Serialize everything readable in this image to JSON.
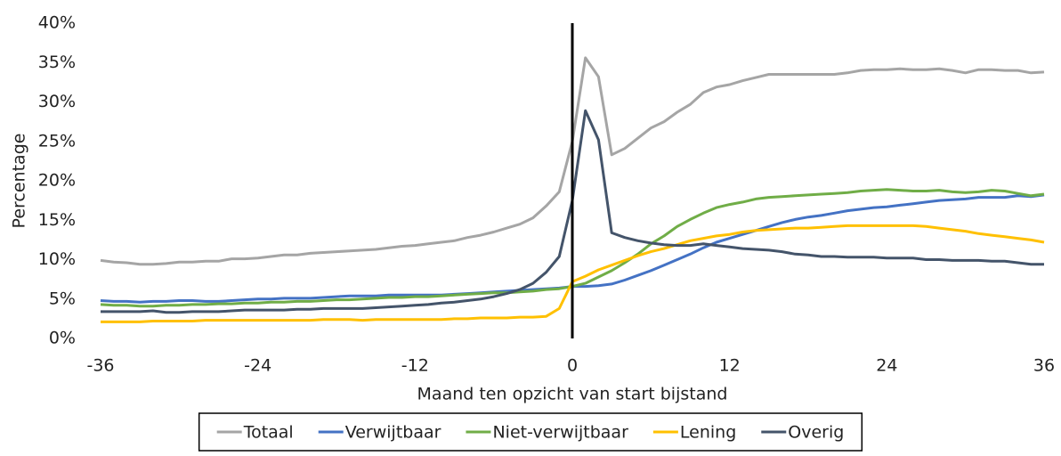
{
  "chart_data": {
    "type": "line",
    "xlabel": "Maand ten opzicht van start bijstand",
    "ylabel": "Percentage",
    "x": [
      -36,
      -35,
      -34,
      -33,
      -32,
      -31,
      -30,
      -29,
      -28,
      -27,
      -26,
      -25,
      -24,
      -23,
      -22,
      -21,
      -20,
      -19,
      -18,
      -17,
      -16,
      -15,
      -14,
      -13,
      -12,
      -11,
      -10,
      -9,
      -8,
      -7,
      -6,
      -5,
      -4,
      -3,
      -2,
      -1,
      0,
      1,
      2,
      3,
      4,
      5,
      6,
      7,
      8,
      9,
      10,
      11,
      12,
      13,
      14,
      15,
      16,
      17,
      18,
      19,
      20,
      21,
      22,
      23,
      24,
      25,
      26,
      27,
      28,
      29,
      30,
      31,
      32,
      33,
      34,
      35,
      36
    ],
    "xlim": [
      -36,
      36
    ],
    "xticks": [
      -36,
      -24,
      -12,
      0,
      12,
      24,
      36
    ],
    "ylim": [
      0,
      40
    ],
    "yticks": [
      {
        "value": 0,
        "label": "0%"
      },
      {
        "value": 5,
        "label": "5%"
      },
      {
        "value": 10,
        "label": "10%"
      },
      {
        "value": 15,
        "label": "15%"
      },
      {
        "value": 20,
        "label": "20%"
      },
      {
        "value": 25,
        "label": "25%"
      },
      {
        "value": 30,
        "label": "30%"
      },
      {
        "value": 35,
        "label": "35%"
      },
      {
        "value": 40,
        "label": "40%"
      }
    ],
    "grid": false,
    "vline": 0,
    "legend": "bottom",
    "series": [
      {
        "name": "Totaal",
        "color": "#a5a5a5",
        "values": [
          9.9,
          9.7,
          9.6,
          9.4,
          9.4,
          9.5,
          9.7,
          9.7,
          9.8,
          9.8,
          10.1,
          10.1,
          10.2,
          10.4,
          10.6,
          10.6,
          10.8,
          10.9,
          11.0,
          11.1,
          11.2,
          11.3,
          11.5,
          11.7,
          11.8,
          12.0,
          12.2,
          12.4,
          12.8,
          13.1,
          13.5,
          14.0,
          14.5,
          15.3,
          16.8,
          18.6,
          25,
          35.6,
          33.2,
          23.3,
          24.1,
          25.4,
          26.7,
          27.5,
          28.7,
          29.7,
          31.2,
          31.9,
          32.2,
          32.7,
          33.1,
          33.5,
          33.5,
          33.5,
          33.5,
          33.5,
          33.5,
          33.7,
          34.0,
          34.1,
          34.1,
          34.2,
          34.1,
          34.1,
          34.2,
          34.0,
          33.7,
          34.1,
          34.1,
          34.0,
          34.0,
          33.7,
          33.8
        ]
      },
      {
        "name": "Verwijtbaar",
        "color": "#4472c4",
        "values": [
          4.8,
          4.7,
          4.7,
          4.6,
          4.7,
          4.7,
          4.8,
          4.8,
          4.7,
          4.7,
          4.8,
          4.9,
          5.0,
          5.0,
          5.1,
          5.1,
          5.1,
          5.2,
          5.3,
          5.4,
          5.4,
          5.4,
          5.5,
          5.5,
          5.5,
          5.5,
          5.5,
          5.6,
          5.7,
          5.8,
          5.9,
          6.0,
          6.1,
          6.2,
          6.3,
          6.4,
          6.6,
          6.6,
          6.7,
          6.9,
          7.4,
          8.0,
          8.6,
          9.3,
          10.0,
          10.7,
          11.5,
          12.2,
          12.7,
          13.2,
          13.7,
          14.2,
          14.7,
          15.1,
          15.4,
          15.6,
          15.9,
          16.2,
          16.4,
          16.6,
          16.7,
          16.9,
          17.1,
          17.3,
          17.5,
          17.6,
          17.7,
          17.9,
          17.9,
          17.9,
          18.1,
          18.0,
          18.2
        ]
      },
      {
        "name": "Niet-verwijtbaar",
        "color": "#70ad47",
        "values": [
          4.3,
          4.2,
          4.2,
          4.1,
          4.1,
          4.2,
          4.2,
          4.3,
          4.3,
          4.4,
          4.4,
          4.5,
          4.5,
          4.6,
          4.6,
          4.7,
          4.7,
          4.8,
          4.9,
          4.9,
          5.0,
          5.1,
          5.2,
          5.2,
          5.3,
          5.3,
          5.4,
          5.5,
          5.6,
          5.7,
          5.8,
          5.8,
          5.9,
          6.0,
          6.2,
          6.3,
          6.6,
          7.0,
          7.8,
          8.6,
          9.6,
          10.7,
          12.0,
          13.0,
          14.2,
          15.1,
          15.9,
          16.6,
          17.0,
          17.3,
          17.7,
          17.9,
          18.0,
          18.1,
          18.2,
          18.3,
          18.4,
          18.5,
          18.7,
          18.8,
          18.9,
          18.8,
          18.7,
          18.7,
          18.8,
          18.6,
          18.5,
          18.6,
          18.8,
          18.7,
          18.4,
          18.1,
          18.3
        ]
      },
      {
        "name": "Lening",
        "color": "#ffc000",
        "values": [
          2.1,
          2.1,
          2.1,
          2.1,
          2.2,
          2.2,
          2.2,
          2.2,
          2.3,
          2.3,
          2.3,
          2.3,
          2.3,
          2.3,
          2.3,
          2.3,
          2.3,
          2.4,
          2.4,
          2.4,
          2.3,
          2.4,
          2.4,
          2.4,
          2.4,
          2.4,
          2.4,
          2.5,
          2.5,
          2.6,
          2.6,
          2.6,
          2.7,
          2.7,
          2.8,
          3.8,
          7.2,
          7.9,
          8.7,
          9.3,
          9.9,
          10.5,
          11.0,
          11.4,
          11.9,
          12.4,
          12.7,
          13.0,
          13.2,
          13.5,
          13.7,
          13.8,
          13.9,
          14.0,
          14.0,
          14.1,
          14.2,
          14.3,
          14.3,
          14.3,
          14.3,
          14.3,
          14.3,
          14.2,
          14.0,
          13.8,
          13.6,
          13.3,
          13.1,
          12.9,
          12.7,
          12.5,
          12.2
        ]
      },
      {
        "name": "Overig",
        "color": "#44546a",
        "values": [
          3.4,
          3.4,
          3.4,
          3.4,
          3.5,
          3.3,
          3.3,
          3.4,
          3.4,
          3.4,
          3.5,
          3.6,
          3.6,
          3.6,
          3.6,
          3.7,
          3.7,
          3.8,
          3.8,
          3.8,
          3.8,
          3.9,
          4.0,
          4.1,
          4.2,
          4.3,
          4.5,
          4.6,
          4.8,
          5.0,
          5.3,
          5.7,
          6.2,
          7.0,
          8.4,
          10.4,
          17.5,
          28.9,
          25.2,
          13.4,
          12.8,
          12.4,
          12.1,
          11.9,
          11.8,
          11.8,
          12.0,
          11.8,
          11.6,
          11.4,
          11.3,
          11.2,
          11.0,
          10.7,
          10.6,
          10.4,
          10.4,
          10.3,
          10.3,
          10.3,
          10.2,
          10.2,
          10.2,
          10.0,
          10.0,
          9.9,
          9.9,
          9.9,
          9.8,
          9.8,
          9.6,
          9.4,
          9.4
        ]
      }
    ]
  }
}
